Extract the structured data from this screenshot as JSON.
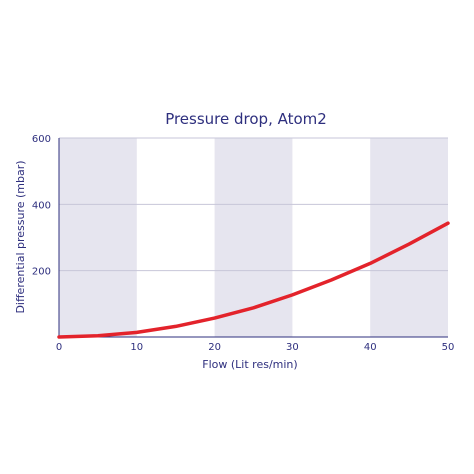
{
  "chart_data": {
    "type": "line",
    "title": "Pressure drop, Atom2",
    "xlabel": "Flow (Lit res/min)",
    "ylabel": "Differential pressure (mbar)",
    "xlim": [
      0,
      50
    ],
    "ylim": [
      0,
      600
    ],
    "x_ticks": [
      "0",
      "10",
      "20",
      "30",
      "40",
      "50"
    ],
    "y_ticks": [
      "200",
      "400",
      "600"
    ],
    "grid": true,
    "shaded_bands": [
      [
        0,
        10
      ],
      [
        20,
        30
      ],
      [
        40,
        50
      ]
    ],
    "colors": {
      "line": "#e3232b",
      "band": "#e6e5ef",
      "grid": "#c7c6d8",
      "text": "#2e2f7e",
      "axis": "#2e2f7e"
    },
    "series": [
      {
        "x": [
          0,
          5,
          10,
          15,
          20,
          25,
          30,
          35,
          40,
          45,
          50
        ],
        "y": [
          0,
          4,
          14,
          32,
          57,
          88,
          127,
          172,
          222,
          280,
          343
        ]
      }
    ]
  }
}
